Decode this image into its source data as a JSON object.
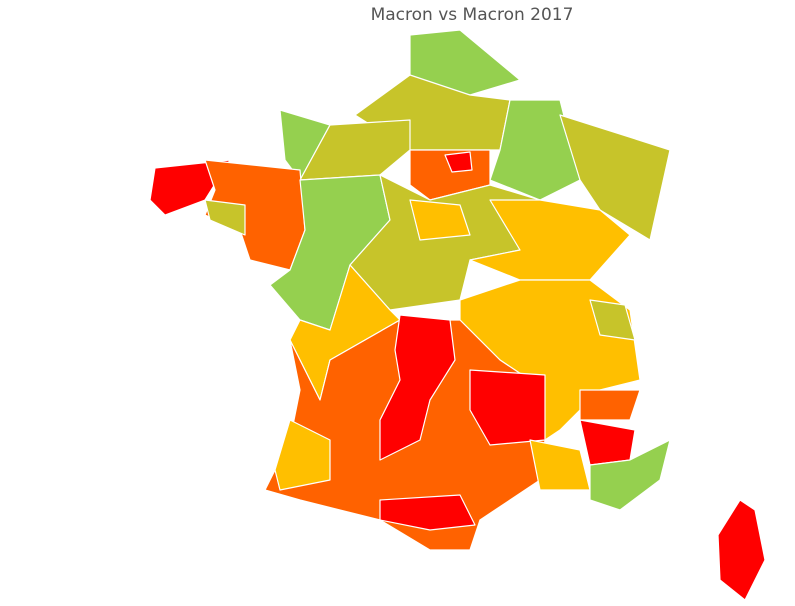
{
  "title": "Macron vs Macron 2017"
}
